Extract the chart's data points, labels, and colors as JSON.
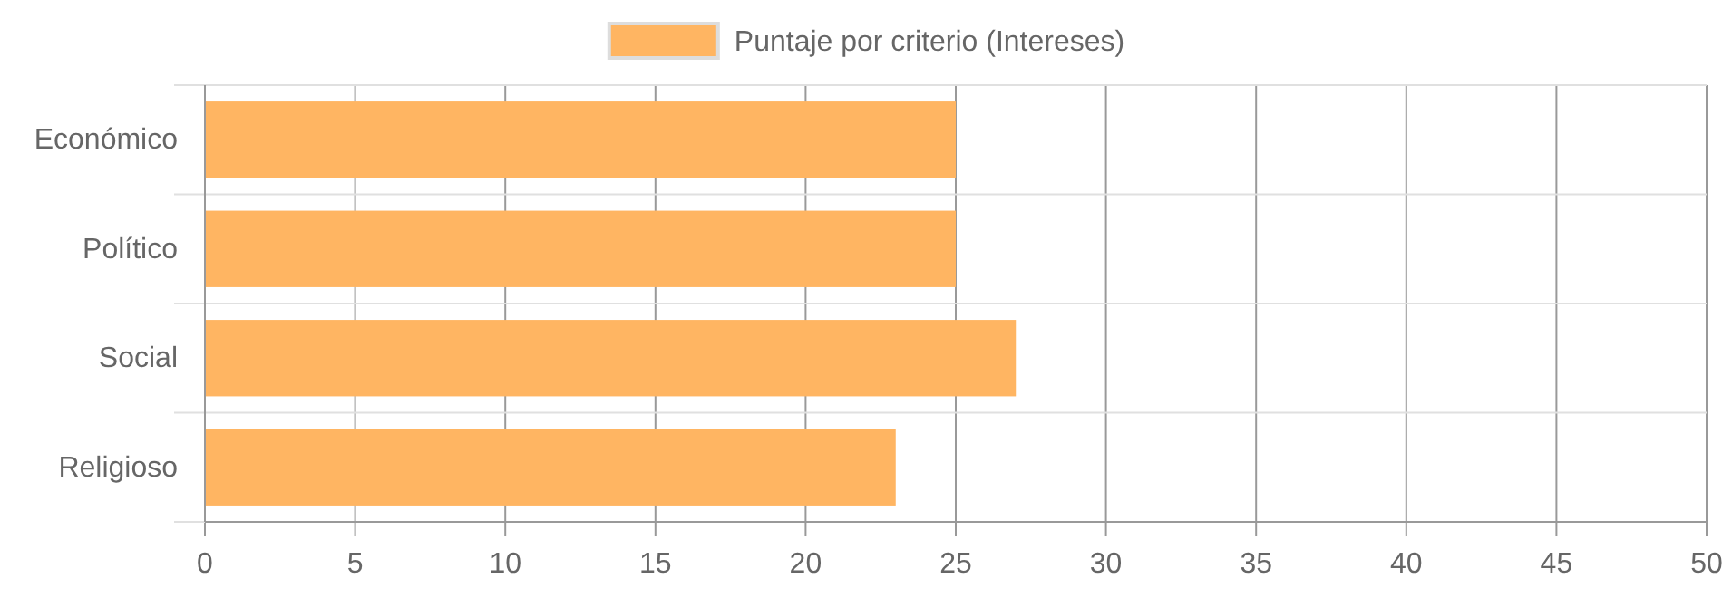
{
  "chart_data": {
    "type": "bar",
    "orientation": "horizontal",
    "categories": [
      "Económico",
      "Político",
      "Social",
      "Religioso"
    ],
    "series": [
      {
        "name": "Puntaje por criterio (Intereses)",
        "color": "#ffb562",
        "values": [
          25,
          25,
          27,
          23
        ]
      }
    ],
    "xlim": [
      0,
      50
    ],
    "xticks": [
      0,
      5,
      10,
      15,
      20,
      25,
      30,
      35,
      40,
      45,
      50
    ],
    "grid": true,
    "legend": "top"
  }
}
